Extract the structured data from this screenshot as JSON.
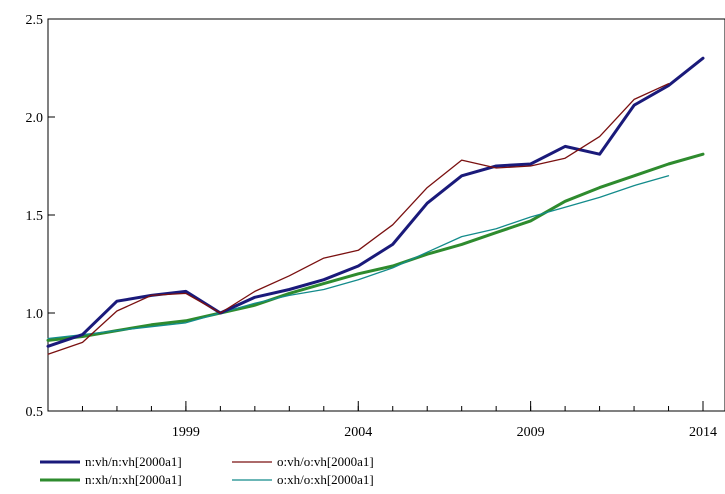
{
  "chart_data": {
    "type": "line",
    "title": "",
    "xlabel": "",
    "ylabel": "",
    "x": [
      1995,
      1996,
      1997,
      1998,
      1999,
      2000,
      2001,
      2002,
      2003,
      2004,
      2005,
      2006,
      2007,
      2008,
      2009,
      2010,
      2011,
      2012,
      2013,
      2014
    ],
    "xlim": [
      1995,
      2014
    ],
    "ylim": [
      0.5,
      2.5
    ],
    "xticks": [
      1999,
      2004,
      2009,
      2014
    ],
    "xtick_labels": [
      "1999",
      "2004",
      "2009",
      "2014"
    ],
    "yticks": [
      0.5,
      1.0,
      1.5,
      2.0,
      2.5
    ],
    "ytick_labels": [
      "0.5",
      "1.0",
      "1.5",
      "2.0",
      "2.5"
    ],
    "grid": false,
    "legend_position": "bottom-left",
    "series": [
      {
        "name": "n:vh/n:vh[2000a1]",
        "color": "#1a1a7a",
        "width": 3,
        "values": [
          0.83,
          0.89,
          1.06,
          1.09,
          1.11,
          1.0,
          1.08,
          1.12,
          1.17,
          1.24,
          1.35,
          1.56,
          1.7,
          1.75,
          1.76,
          1.85,
          1.81,
          2.06,
          2.16,
          2.3
        ]
      },
      {
        "name": "o:vh/o:vh[2000a1]",
        "color": "#7a1010",
        "width": 1.3,
        "values": [
          0.79,
          0.85,
          1.01,
          1.09,
          1.1,
          1.0,
          1.11,
          1.19,
          1.28,
          1.32,
          1.45,
          1.64,
          1.78,
          1.74,
          1.75,
          1.79,
          1.9,
          2.09,
          2.17,
          null
        ]
      },
      {
        "name": "n:xh/n:xh[2000a1]",
        "color": "#2e8b2e",
        "width": 3,
        "values": [
          0.86,
          0.88,
          0.91,
          0.94,
          0.96,
          1.0,
          1.04,
          1.1,
          1.15,
          1.2,
          1.24,
          1.3,
          1.35,
          1.41,
          1.47,
          1.57,
          1.64,
          1.7,
          1.76,
          1.81
        ]
      },
      {
        "name": "o:xh/o:xh[2000a1]",
        "color": "#138b8b",
        "width": 1.3,
        "values": [
          0.87,
          0.89,
          0.91,
          0.93,
          0.95,
          1.0,
          1.05,
          1.09,
          1.12,
          1.17,
          1.23,
          1.31,
          1.39,
          1.43,
          1.49,
          1.54,
          1.59,
          1.65,
          1.7,
          null
        ]
      }
    ]
  }
}
